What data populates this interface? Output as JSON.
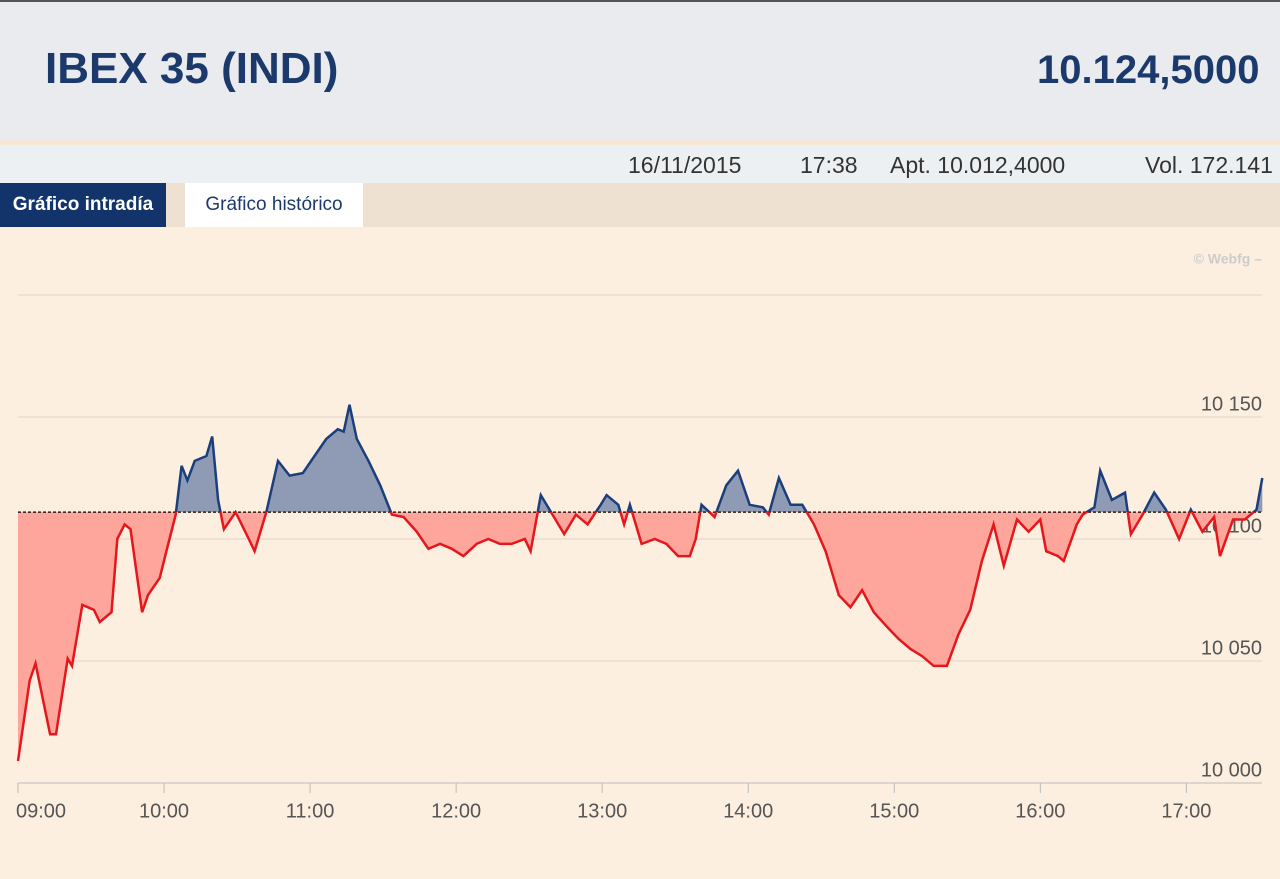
{
  "header": {
    "title": "IBEX 35 (INDI)",
    "value": "10.124,5000"
  },
  "info": [
    "16/11/2015",
    "17:38",
    "Apt. 10.012,4000",
    "Vol. 172.141"
  ],
  "tabs": [
    "Gráfico intradía",
    "Gráfico histórico"
  ],
  "chart_data": {
    "type": "line",
    "credit": "© Webfg –",
    "x": [
      9.0,
      9.08,
      9.12,
      9.22,
      9.26,
      9.34,
      9.37,
      9.44,
      9.52,
      9.56,
      9.64,
      9.68,
      9.73,
      9.77,
      9.85,
      9.89,
      9.97,
      10.02,
      10.08,
      10.12,
      10.16,
      10.21,
      10.29,
      10.33,
      10.37,
      10.41,
      10.49,
      10.58,
      10.62,
      10.7,
      10.78,
      10.86,
      10.95,
      11.03,
      11.11,
      11.19,
      11.23,
      11.27,
      11.32,
      11.4,
      11.48,
      11.56,
      11.64,
      11.73,
      11.81,
      11.89,
      11.97,
      12.05,
      12.14,
      12.22,
      12.3,
      12.38,
      12.47,
      12.51,
      12.58,
      12.66,
      12.74,
      12.82,
      12.9,
      12.99,
      13.03,
      13.11,
      13.15,
      13.19,
      13.27,
      13.36,
      13.44,
      13.52,
      13.6,
      13.64,
      13.68,
      13.77,
      13.85,
      13.93,
      14.01,
      14.1,
      14.14,
      14.21,
      14.29,
      14.37,
      14.45,
      14.53,
      14.62,
      14.7,
      14.78,
      14.86,
      14.95,
      15.03,
      15.11,
      15.19,
      15.27,
      15.36,
      15.44,
      15.52,
      15.6,
      15.68,
      15.75,
      15.84,
      15.92,
      16.0,
      16.04,
      16.12,
      16.16,
      16.25,
      16.29,
      16.37,
      16.41,
      16.49,
      16.58,
      16.62,
      16.7,
      16.78,
      16.86,
      16.95,
      17.03,
      17.11,
      17.19,
      17.23,
      17.32,
      17.4,
      17.48,
      17.52
    ],
    "values": [
      10009,
      10042,
      10049,
      10020,
      10020,
      10051,
      10048,
      10073,
      10071,
      10066,
      10070,
      10100,
      10106,
      10104,
      10070,
      10077,
      10084,
      10096,
      10110,
      10130,
      10124,
      10132,
      10134,
      10142,
      10116,
      10104,
      10111,
      10100,
      10095,
      10111,
      10132,
      10126,
      10127,
      10134,
      10141,
      10145,
      10144,
      10155,
      10141,
      10132,
      10122,
      10110,
      10109,
      10103,
      10096,
      10098,
      10096,
      10093,
      10098,
      10100,
      10098,
      10098,
      10100,
      10095,
      10118,
      10110,
      10102,
      10110,
      10106,
      10114,
      10118,
      10114,
      10106,
      10114,
      10098,
      10100,
      10098,
      10093,
      10093,
      10100,
      10114,
      10109,
      10122,
      10128,
      10114,
      10113,
      10110,
      10125,
      10114,
      10114,
      10106,
      10095,
      10077,
      10072,
      10079,
      10070,
      10064,
      10059,
      10055,
      10052,
      10048,
      10048,
      10061,
      10071,
      10091,
      10106,
      10089,
      10108,
      10103,
      10108,
      10095,
      10093,
      10091,
      10106,
      10110,
      10113,
      10128,
      10116,
      10119,
      10102,
      10110,
      10119,
      10112,
      10100,
      10112,
      10103,
      10109,
      10093,
      10108,
      10108,
      10112,
      10125
    ],
    "baseline": 10111,
    "color_above": "#1b3f7c",
    "fill_above": "#8f9bb4",
    "color_below": "#e5161c",
    "fill_below": "#ffa69c",
    "xlim": [
      9,
      17.6
    ],
    "xticks": [
      {
        "value": 9,
        "label": "09:00"
      },
      {
        "value": 10,
        "label": "10:00"
      },
      {
        "value": 11,
        "label": "11:00"
      },
      {
        "value": 12,
        "label": "12:00"
      },
      {
        "value": 13,
        "label": "13:00"
      },
      {
        "value": 14,
        "label": "14:00"
      },
      {
        "value": 15,
        "label": "15:00"
      },
      {
        "value": 16,
        "label": "16:00"
      },
      {
        "value": 17,
        "label": "17:00"
      }
    ],
    "ylim": [
      10000,
      10200
    ],
    "yticks": [
      {
        "value": 10000,
        "label": "10 000"
      },
      {
        "value": 10050,
        "label": "10 050"
      },
      {
        "value": 10100,
        "label": "10 100"
      },
      {
        "value": 10150,
        "label": "10 150"
      }
    ],
    "grid": true
  }
}
